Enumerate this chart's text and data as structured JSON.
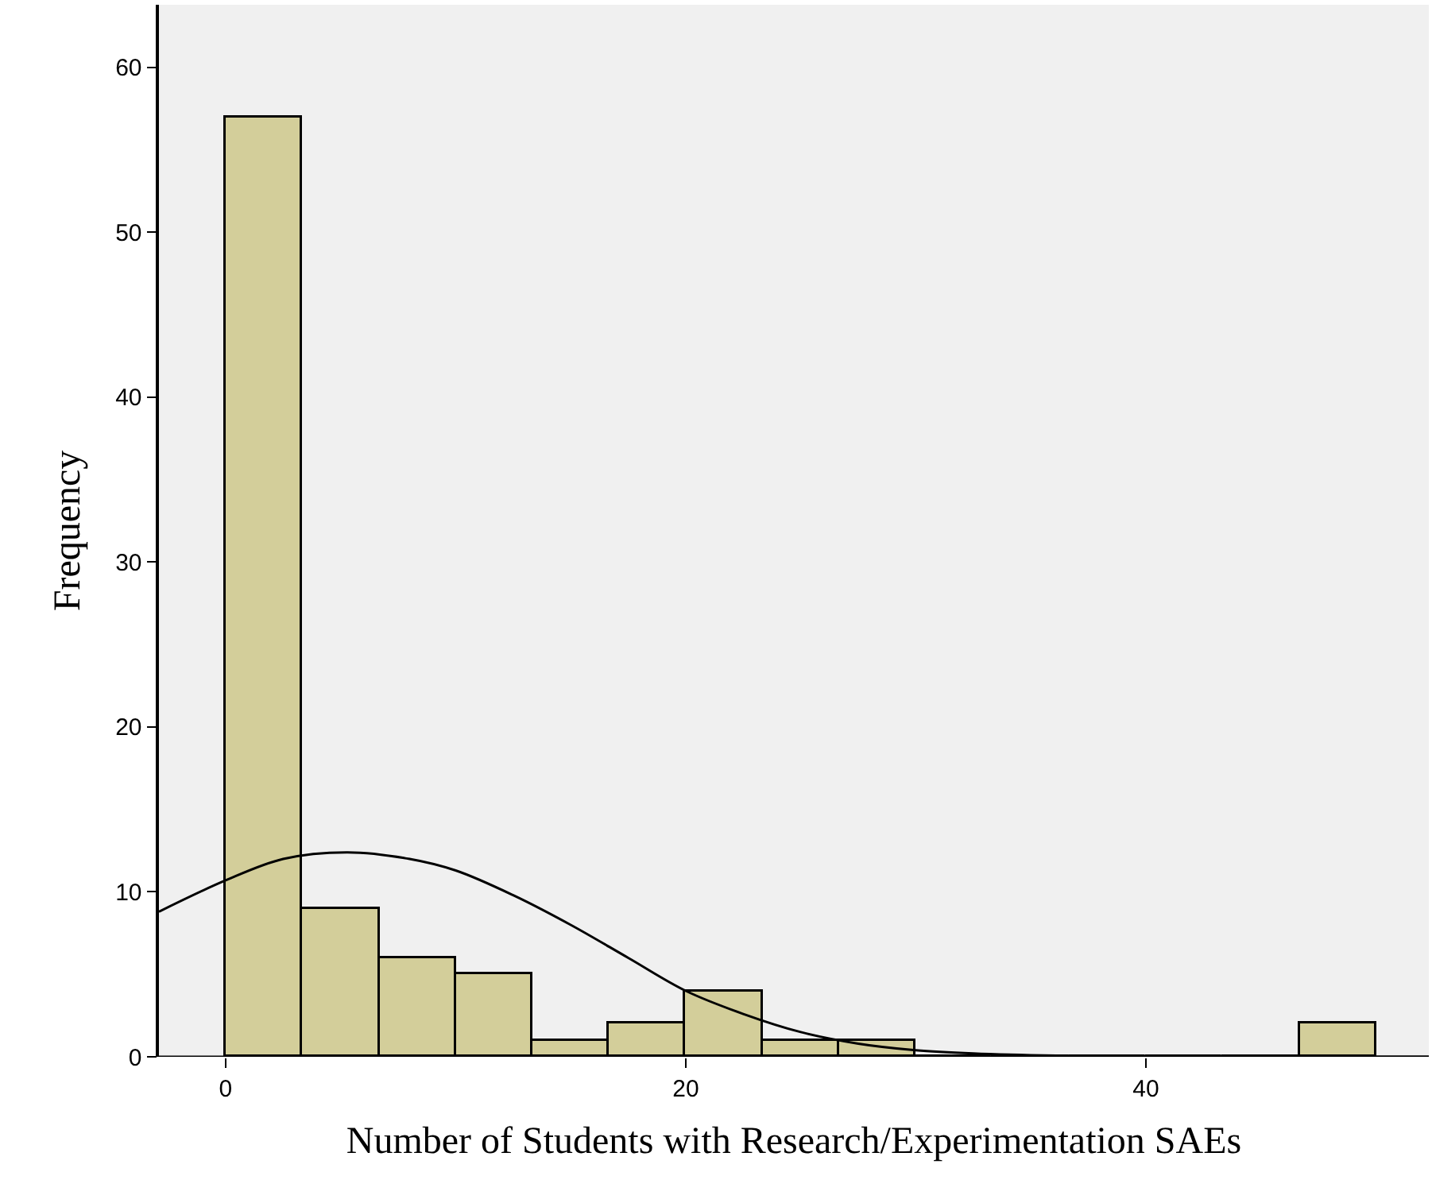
{
  "chart_data": {
    "type": "histogram",
    "xlabel": "Number of Students with Research/Experimentation SAEs",
    "ylabel": "Frequency",
    "bins": [
      0,
      3.33,
      6.67,
      10,
      13.33,
      16.67,
      20,
      23.33,
      26.67,
      30,
      33.33,
      36.67,
      40,
      43.33,
      46.67,
      50
    ],
    "values": [
      57,
      9,
      6,
      5,
      1,
      2,
      4,
      1,
      1,
      0,
      0,
      0,
      0,
      0,
      2
    ],
    "color": "#d3ce9a",
    "series": [
      {
        "type": "line",
        "color": "#000000",
        "x": [
          -2.9,
          0,
          2.5,
          5.3,
          8,
          10,
          12.5,
          15,
          17.5,
          20,
          22.5,
          25,
          27.5,
          30,
          32.5,
          35,
          40,
          45,
          50,
          52.3
        ],
        "values": [
          8.8,
          10.7,
          12.0,
          12.4,
          12.0,
          11.3,
          9.8,
          8.0,
          6.0,
          4.0,
          2.6,
          1.5,
          0.8,
          0.4,
          0.2,
          0.1,
          0,
          0,
          0,
          0
        ]
      }
    ],
    "xlim": [
      -2.9,
      52.3
    ],
    "ylim": [
      0,
      63.8
    ],
    "xticks": [
      0,
      20,
      40
    ],
    "yticks": [
      0,
      10,
      20,
      30,
      40,
      50,
      60
    ],
    "grid": false,
    "line_style": "solid",
    "marker": "none"
  }
}
